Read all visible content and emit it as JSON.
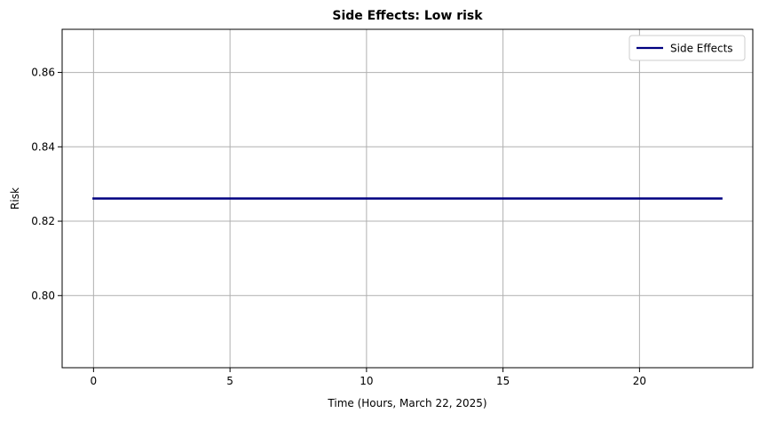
{
  "chart_data": {
    "type": "line",
    "title": "Side Effects: Low risk",
    "xlabel": "Time (Hours, March 22, 2025)",
    "ylabel": "Risk",
    "xlim": [
      -1.15,
      24.15
    ],
    "ylim": [
      0.7806,
      0.8716
    ],
    "xticks": [
      0,
      5,
      10,
      15,
      20
    ],
    "yticks": [
      0.8,
      0.82,
      0.84,
      0.86
    ],
    "xtick_labels": [
      "0",
      "5",
      "10",
      "15",
      "20"
    ],
    "ytick_labels": [
      "0.80",
      "0.82",
      "0.84",
      "0.86"
    ],
    "grid": true,
    "legend_position": "top-right",
    "series": [
      {
        "name": "Side Effects",
        "color": "#000080",
        "x": [
          0,
          1,
          2,
          3,
          4,
          5,
          6,
          7,
          8,
          9,
          10,
          11,
          12,
          13,
          14,
          15,
          16,
          17,
          18,
          19,
          20,
          21,
          22,
          23
        ],
        "y": [
          0.8261,
          0.8261,
          0.8261,
          0.8261,
          0.8261,
          0.8261,
          0.8261,
          0.8261,
          0.8261,
          0.8261,
          0.8261,
          0.8261,
          0.8261,
          0.8261,
          0.8261,
          0.8261,
          0.8261,
          0.8261,
          0.8261,
          0.8261,
          0.8261,
          0.8261,
          0.8261,
          0.8261
        ]
      }
    ]
  }
}
